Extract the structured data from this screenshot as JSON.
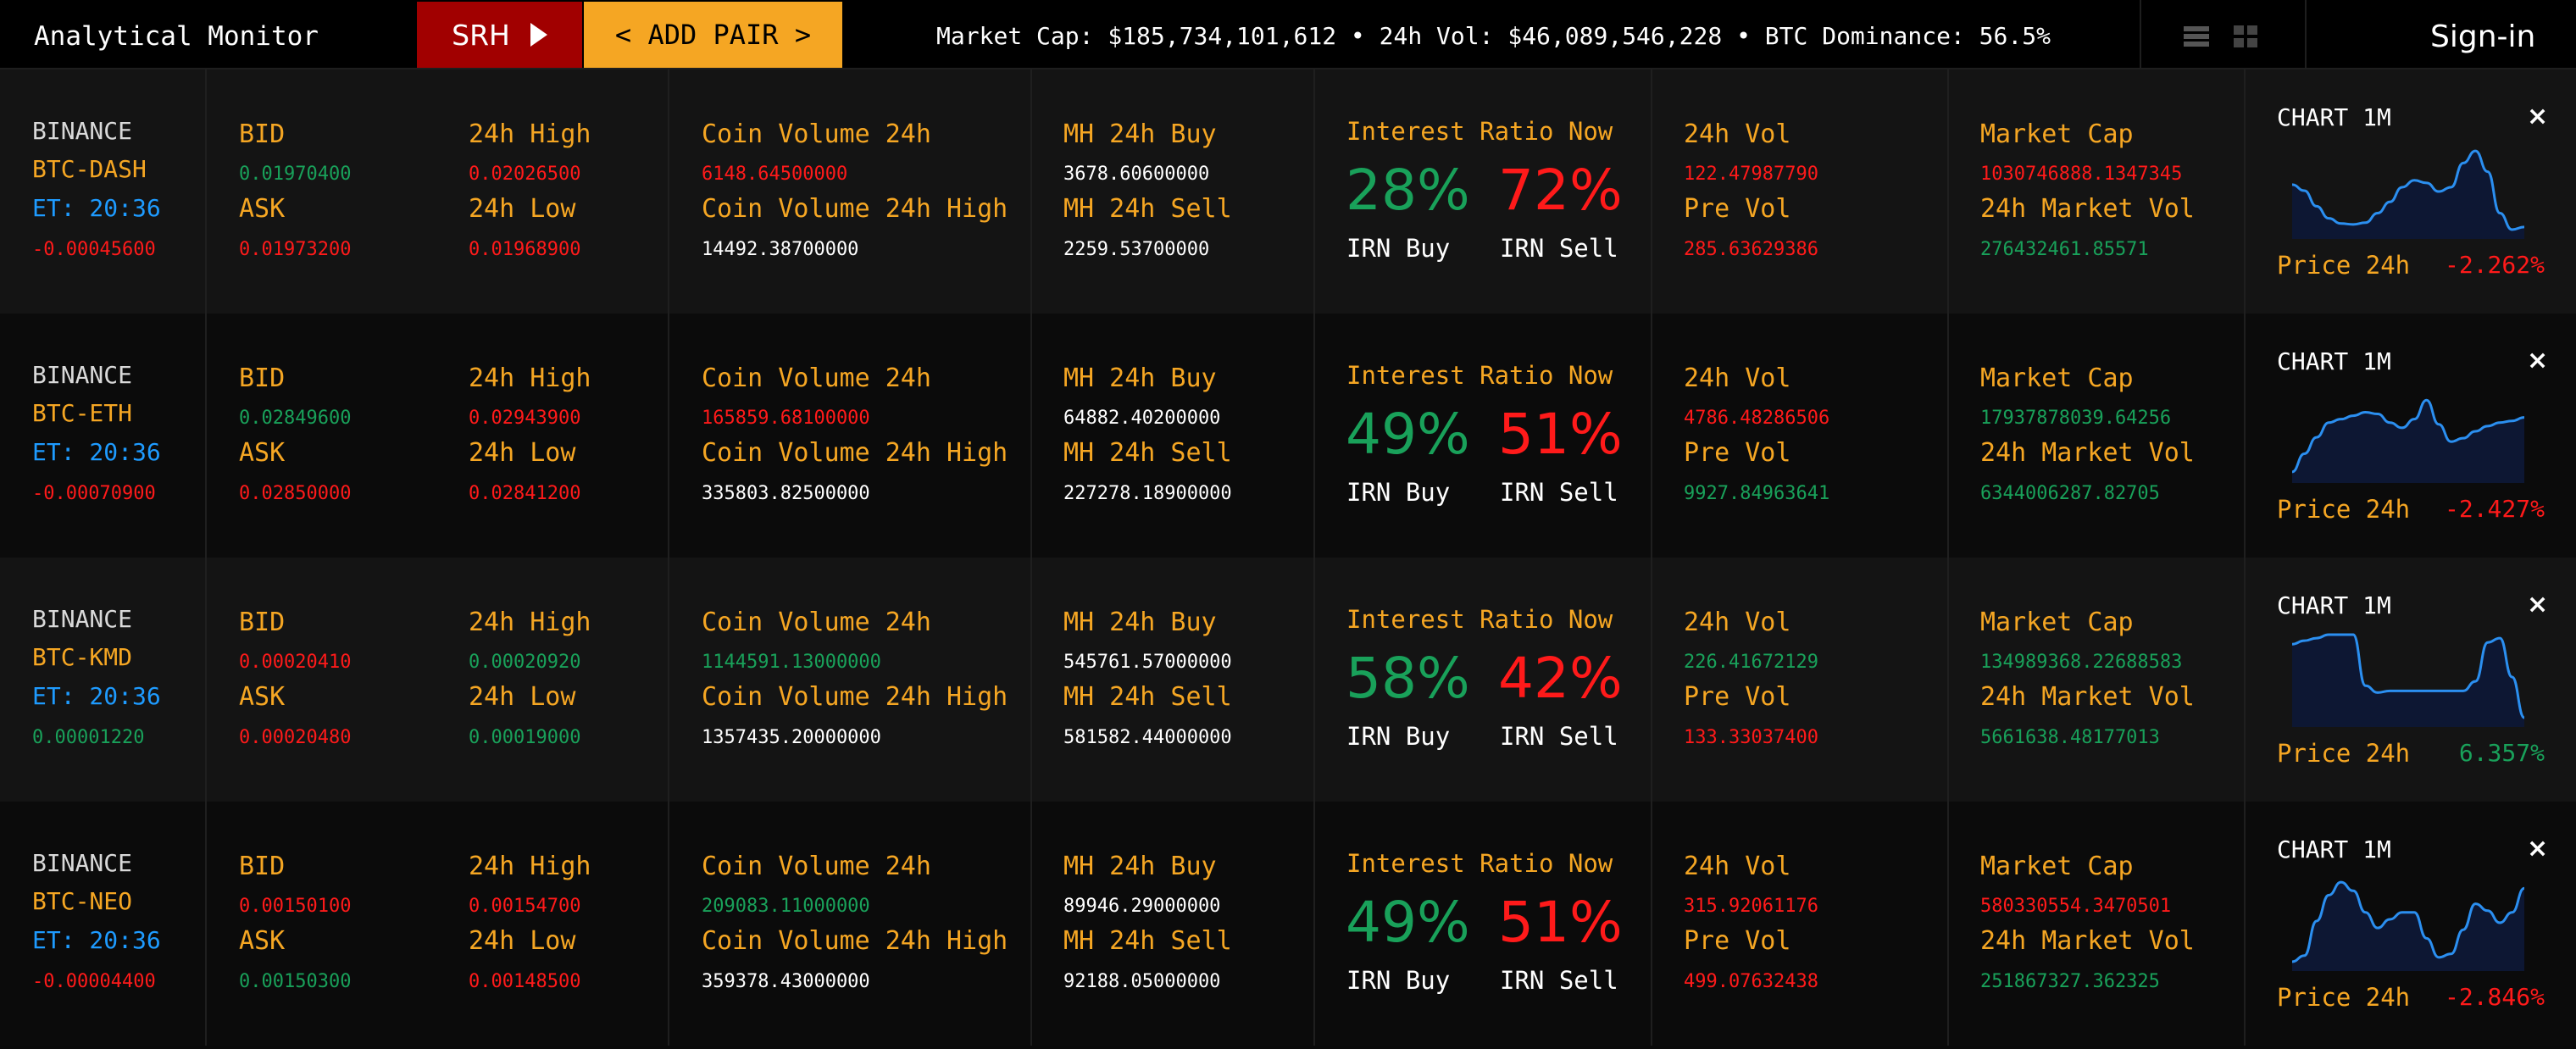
{
  "header": {
    "brand": "Analytical Monitor",
    "srh_label": "SRH",
    "add_pair_label": "< ADD PAIR >",
    "ticker": "Market Cap: $185,734,101,612 • 24h Vol: $46,089,546,228 • BTC Dominance: 56.5%",
    "signin_label": "Sign-in"
  },
  "labels": {
    "bid": "BID",
    "ask": "ASK",
    "high": "24h High",
    "low": "24h Low",
    "coin_vol": "Coin Volume 24h",
    "coin_vol_high": "Coin Volume 24h High",
    "mh_buy": "MH 24h Buy",
    "mh_sell": "MH 24h Sell",
    "interest": "Interest Ratio Now",
    "irn_buy": "IRN Buy",
    "irn_sell": "IRN Sell",
    "vol": "24h Vol",
    "pre_vol": "Pre Vol",
    "market_cap": "Market Cap",
    "market_vol": "24h Market Vol",
    "chart": "CHART 1M",
    "price": "Price 24h",
    "close": "×"
  },
  "colors": {
    "accent": "#f5a623",
    "up": "#19a15a",
    "down": "#ff1a1a",
    "time": "#1e9bff",
    "srh": "#a10000"
  },
  "rows": [
    {
      "exchange": "BINANCE",
      "pair": "BTC-DASH",
      "time": "ET: 20:36",
      "change": "-0.00045600",
      "bid": "0.01970400",
      "ask": "0.01973200",
      "high": "0.02026500",
      "low": "0.01968900",
      "coin_vol": "6148.64500000",
      "coin_vol_high": "14492.38700000",
      "mh_buy": "3678.60600000",
      "mh_sell": "2259.53700000",
      "irn_buy_pct": "28%",
      "irn_sell_pct": "72%",
      "vol": "122.47987790",
      "pre_vol": "285.63629386",
      "market_cap": "1030746888.1347345",
      "market_vol": "276432461.85571",
      "price_change": "-2.262%",
      "c_change": "red",
      "c_bid": "green",
      "c_ask": "red",
      "c_high": "red",
      "c_low": "red",
      "c_coin_vol": "red",
      "c_vol": "red",
      "c_pre_vol": "red",
      "c_market_cap": "red",
      "c_market_vol": "green",
      "c_price": "red",
      "spark": [
        0.55,
        0.48,
        0.3,
        0.16,
        0.1,
        0.09,
        0.11,
        0.22,
        0.35,
        0.52,
        0.6,
        0.57,
        0.47,
        0.52,
        0.8,
        0.94,
        0.7,
        0.22,
        0.03,
        0.06
      ]
    },
    {
      "exchange": "BINANCE",
      "pair": "BTC-ETH",
      "time": "ET: 20:36",
      "change": "-0.00070900",
      "bid": "0.02849600",
      "ask": "0.02850000",
      "high": "0.02943900",
      "low": "0.02841200",
      "coin_vol": "165859.68100000",
      "coin_vol_high": "335803.82500000",
      "mh_buy": "64882.40200000",
      "mh_sell": "227278.18900000",
      "irn_buy_pct": "49%",
      "irn_sell_pct": "51%",
      "vol": "4786.48286506",
      "pre_vol": "9927.84963641",
      "market_cap": "17937878039.64256",
      "market_vol": "6344006287.82705",
      "price_change": "-2.427%",
      "c_change": "red",
      "c_bid": "green",
      "c_ask": "red",
      "c_high": "red",
      "c_low": "red",
      "c_coin_vol": "red",
      "c_vol": "red",
      "c_pre_vol": "green",
      "c_market_cap": "green",
      "c_market_vol": "green",
      "c_price": "red",
      "spark": [
        0.05,
        0.26,
        0.45,
        0.62,
        0.66,
        0.7,
        0.74,
        0.72,
        0.62,
        0.56,
        0.66,
        0.88,
        0.6,
        0.4,
        0.44,
        0.52,
        0.58,
        0.62,
        0.64,
        0.68
      ]
    },
    {
      "exchange": "BINANCE",
      "pair": "BTC-KMD",
      "time": "ET: 20:36",
      "change": "0.00001220",
      "bid": "0.00020410",
      "ask": "0.00020480",
      "high": "0.00020920",
      "low": "0.00019000",
      "coin_vol": "1144591.13000000",
      "coin_vol_high": "1357435.20000000",
      "mh_buy": "545761.57000000",
      "mh_sell": "581582.44000000",
      "irn_buy_pct": "58%",
      "irn_sell_pct": "42%",
      "vol": "226.41672129",
      "pre_vol": "133.33037400",
      "market_cap": "134989368.22688583",
      "market_vol": "5661638.48177013",
      "price_change": "6.357%",
      "c_change": "green",
      "c_bid": "red",
      "c_ask": "red",
      "c_high": "green",
      "c_low": "green",
      "c_coin_vol": "green",
      "c_vol": "green",
      "c_pre_vol": "red",
      "c_market_cap": "green",
      "c_market_vol": "green",
      "c_price": "green",
      "spark": [
        0.88,
        0.92,
        0.95,
        0.99,
        0.99,
        0.99,
        0.4,
        0.32,
        0.34,
        0.34,
        0.34,
        0.34,
        0.34,
        0.34,
        0.34,
        0.45,
        0.9,
        0.95,
        0.5,
        0.03
      ]
    },
    {
      "exchange": "BINANCE",
      "pair": "BTC-NEO",
      "time": "ET: 20:36",
      "change": "-0.00004400",
      "bid": "0.00150100",
      "ask": "0.00150300",
      "high": "0.00154700",
      "low": "0.00148500",
      "coin_vol": "209083.11000000",
      "coin_vol_high": "359378.43000000",
      "mh_buy": "89946.29000000",
      "mh_sell": "92188.05000000",
      "irn_buy_pct": "49%",
      "irn_sell_pct": "51%",
      "vol": "315.92061176",
      "pre_vol": "499.07632438",
      "market_cap": "580330554.3470501",
      "market_vol": "251867327.362325",
      "price_change": "-2.846%",
      "c_change": "red",
      "c_bid": "red",
      "c_ask": "green",
      "c_high": "red",
      "c_low": "red",
      "c_coin_vol": "green",
      "c_vol": "red",
      "c_pre_vol": "red",
      "c_market_cap": "red",
      "c_market_vol": "green",
      "c_price": "red",
      "spark": [
        0.03,
        0.1,
        0.5,
        0.8,
        0.95,
        0.85,
        0.6,
        0.42,
        0.52,
        0.6,
        0.6,
        0.3,
        0.08,
        0.12,
        0.4,
        0.7,
        0.62,
        0.48,
        0.6,
        0.88
      ]
    }
  ]
}
